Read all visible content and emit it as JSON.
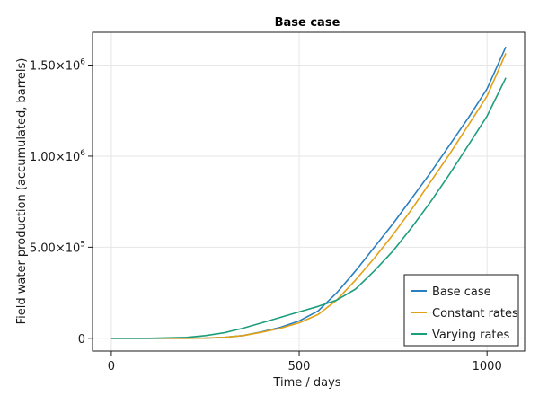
{
  "chart_data": {
    "type": "line",
    "title": "Base case",
    "xlabel": "Time / days",
    "ylabel": "Field water production (accumulated, barrels)",
    "xlim": [
      -50,
      1100
    ],
    "ylim": [
      -70000,
      1680000
    ],
    "x_ticks": [
      {
        "value": 0,
        "label": "0"
      },
      {
        "value": 500,
        "label": "500"
      },
      {
        "value": 1000,
        "label": "1000"
      }
    ],
    "y_ticks": [
      {
        "value": 0,
        "mantissa": "0",
        "exponent": ""
      },
      {
        "value": 500000,
        "mantissa": "5.00×10",
        "exponent": "5"
      },
      {
        "value": 1000000,
        "mantissa": "1.00×10",
        "exponent": "6"
      },
      {
        "value": 1500000,
        "mantissa": "1.50×10",
        "exponent": "6"
      }
    ],
    "grid": true,
    "legend_position": "bottom-right",
    "series": [
      {
        "name": "Base case",
        "color": "#2a7fbf",
        "points": [
          [
            0,
            0
          ],
          [
            100,
            0
          ],
          [
            200,
            0
          ],
          [
            250,
            1000
          ],
          [
            300,
            5000
          ],
          [
            350,
            15000
          ],
          [
            400,
            35000
          ],
          [
            450,
            60000
          ],
          [
            500,
            95000
          ],
          [
            550,
            150000
          ],
          [
            600,
            250000
          ],
          [
            650,
            370000
          ],
          [
            700,
            500000
          ],
          [
            750,
            630000
          ],
          [
            800,
            770000
          ],
          [
            850,
            910000
          ],
          [
            900,
            1060000
          ],
          [
            950,
            1210000
          ],
          [
            1000,
            1370000
          ],
          [
            1050,
            1600000
          ]
        ]
      },
      {
        "name": "Constant rates",
        "color": "#e1a117",
        "points": [
          [
            0,
            0
          ],
          [
            100,
            0
          ],
          [
            200,
            0
          ],
          [
            250,
            1000
          ],
          [
            300,
            5000
          ],
          [
            350,
            15000
          ],
          [
            400,
            33000
          ],
          [
            450,
            55000
          ],
          [
            500,
            85000
          ],
          [
            550,
            130000
          ],
          [
            600,
            210000
          ],
          [
            650,
            320000
          ],
          [
            700,
            440000
          ],
          [
            750,
            570000
          ],
          [
            800,
            710000
          ],
          [
            850,
            860000
          ],
          [
            900,
            1010000
          ],
          [
            950,
            1170000
          ],
          [
            1000,
            1330000
          ],
          [
            1050,
            1565000
          ]
        ]
      },
      {
        "name": "Varying rates",
        "color": "#1c9e7c",
        "points": [
          [
            0,
            0
          ],
          [
            100,
            0
          ],
          [
            200,
            5000
          ],
          [
            250,
            15000
          ],
          [
            300,
            30000
          ],
          [
            350,
            55000
          ],
          [
            400,
            85000
          ],
          [
            450,
            115000
          ],
          [
            500,
            145000
          ],
          [
            550,
            175000
          ],
          [
            600,
            210000
          ],
          [
            650,
            270000
          ],
          [
            700,
            370000
          ],
          [
            750,
            480000
          ],
          [
            800,
            610000
          ],
          [
            850,
            750000
          ],
          [
            900,
            900000
          ],
          [
            950,
            1060000
          ],
          [
            1000,
            1220000
          ],
          [
            1050,
            1430000
          ]
        ]
      }
    ]
  }
}
